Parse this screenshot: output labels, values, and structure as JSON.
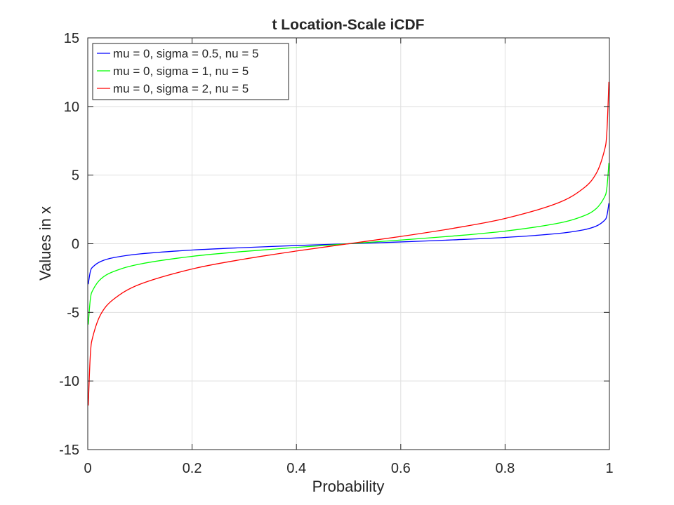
{
  "chart_data": {
    "type": "line",
    "title": "t Location-Scale iCDF",
    "xlabel": "Probability",
    "ylabel": "Values in x",
    "xlim": [
      0,
      1
    ],
    "ylim": [
      -15,
      15
    ],
    "grid": true,
    "legend_location": "top-left",
    "x_ticks": [
      0,
      0.2,
      0.4,
      0.6,
      0.8,
      1
    ],
    "x_tick_labels": [
      "0",
      "0.2",
      "0.4",
      "0.6",
      "0.8",
      "1"
    ],
    "y_ticks": [
      -15,
      -10,
      -5,
      0,
      5,
      10,
      15
    ],
    "y_tick_labels": [
      "-15",
      "-10",
      "-5",
      "0",
      "5",
      "10",
      "15"
    ],
    "x": [
      0.001,
      0.005,
      0.01,
      0.025,
      0.05,
      0.1,
      0.2,
      0.3,
      0.4,
      0.5,
      0.6,
      0.7,
      0.8,
      0.9,
      0.95,
      0.975,
      0.99,
      0.995,
      0.999
    ],
    "series": [
      {
        "name": "mu = 0, sigma = 0.5, nu = 5",
        "color": "#0000ff",
        "values": [
          -2.95,
          -2.02,
          -1.68,
          -1.29,
          -1.01,
          -0.74,
          -0.46,
          -0.28,
          -0.13,
          0,
          0.13,
          0.28,
          0.46,
          0.74,
          1.01,
          1.29,
          1.68,
          2.02,
          2.95
        ]
      },
      {
        "name": "mu = 0, sigma = 1, nu = 5",
        "color": "#00ff00",
        "values": [
          -5.89,
          -4.03,
          -3.36,
          -2.57,
          -2.02,
          -1.48,
          -0.92,
          -0.56,
          -0.27,
          0,
          0.27,
          0.56,
          0.92,
          1.48,
          2.02,
          2.57,
          3.36,
          4.03,
          5.89
        ]
      },
      {
        "name": "mu = 0, sigma = 2, nu = 5",
        "color": "#ff0000",
        "values": [
          -11.79,
          -8.06,
          -6.73,
          -5.14,
          -4.03,
          -2.95,
          -1.84,
          -1.12,
          -0.53,
          0,
          0.53,
          1.12,
          1.84,
          2.95,
          4.03,
          5.14,
          6.73,
          8.06,
          11.79
        ]
      }
    ]
  }
}
